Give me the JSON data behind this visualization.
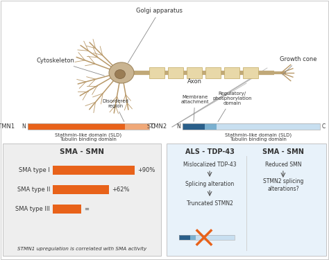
{
  "bg_color": "#f2f2f2",
  "white": "#ffffff",
  "orange_dark": "#e8621a",
  "orange_light": "#f0a878",
  "blue_dark": "#2a5f8a",
  "blue_medium": "#7ab0d0",
  "blue_vlight": "#c8dff0",
  "text_dark": "#333333",
  "bar_orange": "#e8621a",
  "sma_bar_values": [
    1.0,
    0.69,
    0.35
  ],
  "sma_labels": [
    "SMA type I",
    "SMA type II",
    "SMA type III"
  ],
  "sma_annotations": [
    "+90%",
    "+62%",
    "="
  ],
  "title_sma": "SMA - SMN",
  "footer_sma": "STMN1 upregulation is correlated with SMA activity",
  "als_title": "ALS - TDP-43",
  "sma_title2": "SMA - SMN",
  "als_steps": [
    "Mislocalized TDP-43",
    "Splicing alteration",
    "Truncated STMN2"
  ],
  "sma_steps": [
    "Reduced SMN",
    "STMN2 splicing\nalterations?"
  ],
  "stmn1_label": "STMN1",
  "stmn2_label": "STMN2",
  "n_label": "N",
  "c_label": "C",
  "disordered_label": "Disordered\nregion",
  "membrane_label": "Membrane\nattachment",
  "regulatory_label": "Regulatory/\nphosphorylation\ndomain",
  "sld_label1": "Stathmin-like domain (SLD)\nTubulin binding domain",
  "sld_label2": "Stathmin-like domain (SLD)\nTubulin binding domain",
  "golgi_label": "Golgi apparatus",
  "cytoskel_label": "Cytoskeleton",
  "axon_label": "Axon",
  "growthcone_label": "Growth cone"
}
